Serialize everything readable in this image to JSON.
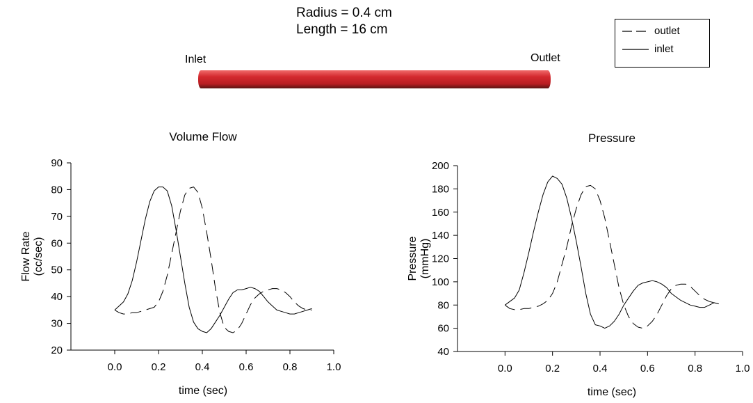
{
  "header": {
    "radius": "Radius = 0.4 cm",
    "length": "Length = 16 cm",
    "inlet_label": "Inlet",
    "outlet_label": "Outlet",
    "vessel_color": "#d42a2f"
  },
  "legend": {
    "items": [
      {
        "label": "outlet",
        "style": "dashed"
      },
      {
        "label": "inlet",
        "style": "solid"
      }
    ]
  },
  "chart_data": [
    {
      "type": "line",
      "title": "Volume Flow",
      "xlabel": "time (sec)",
      "ylabel": [
        "Flow Rate",
        "(cc/sec)"
      ],
      "xlim": [
        -0.2,
        1.0
      ],
      "ylim": [
        20,
        90
      ],
      "xticks": [
        0.0,
        0.2,
        0.4,
        0.6,
        0.8,
        1.0
      ],
      "xtick_labels": [
        "0.0",
        "0.2",
        "0.4",
        "0.6",
        "0.8",
        "1.0"
      ],
      "yticks": [
        20,
        30,
        40,
        50,
        60,
        70,
        80,
        90
      ],
      "ytick_labels": [
        "20",
        "30",
        "40",
        "50",
        "60",
        "70",
        "80",
        "90"
      ],
      "grid": false,
      "series": [
        {
          "name": "inlet",
          "style": "solid",
          "x": [
            0.0,
            0.02,
            0.04,
            0.06,
            0.08,
            0.1,
            0.12,
            0.14,
            0.16,
            0.18,
            0.2,
            0.22,
            0.24,
            0.26,
            0.28,
            0.3,
            0.32,
            0.34,
            0.36,
            0.38,
            0.4,
            0.42,
            0.44,
            0.46,
            0.48,
            0.5,
            0.52,
            0.54,
            0.56,
            0.58,
            0.6,
            0.62,
            0.64,
            0.66,
            0.68,
            0.7,
            0.72,
            0.74,
            0.76,
            0.78,
            0.8,
            0.82,
            0.84,
            0.86,
            0.88,
            0.9
          ],
          "y": [
            35,
            36.5,
            38,
            41,
            46,
            53,
            61,
            69,
            75.5,
            79.5,
            81,
            81,
            79.5,
            74,
            65,
            55,
            45,
            36,
            30.5,
            28,
            27,
            26.5,
            28,
            30.5,
            33,
            36,
            39,
            41.5,
            42.5,
            42.5,
            43,
            43.5,
            43,
            42,
            40,
            38,
            36.5,
            35,
            34.5,
            34,
            33.5,
            33.5,
            34,
            34.5,
            35,
            35.5
          ]
        },
        {
          "name": "outlet",
          "style": "dashed",
          "x": [
            0.0,
            0.02,
            0.04,
            0.06,
            0.08,
            0.1,
            0.12,
            0.14,
            0.16,
            0.18,
            0.2,
            0.22,
            0.24,
            0.26,
            0.28,
            0.3,
            0.32,
            0.34,
            0.36,
            0.38,
            0.4,
            0.42,
            0.44,
            0.46,
            0.48,
            0.5,
            0.52,
            0.54,
            0.56,
            0.58,
            0.6,
            0.62,
            0.64,
            0.66,
            0.68,
            0.7,
            0.72,
            0.74,
            0.76,
            0.78,
            0.8,
            0.82,
            0.84,
            0.86,
            0.88,
            0.9
          ],
          "y": [
            35,
            34,
            33.5,
            33.5,
            34,
            34,
            34.5,
            35,
            35.5,
            36,
            38,
            42,
            48,
            56,
            64,
            72,
            78,
            80.5,
            81,
            79,
            73,
            64,
            54,
            43,
            34,
            28.5,
            27,
            26.5,
            27.5,
            30,
            33.5,
            37,
            39.5,
            41,
            42,
            42.5,
            43,
            43,
            42.5,
            41.5,
            40,
            38,
            36.5,
            35.5,
            35,
            35
          ]
        }
      ]
    },
    {
      "type": "line",
      "title": "Pressure",
      "xlabel": "time (sec)",
      "ylabel": [
        "Pressure",
        "(mmHg)"
      ],
      "xlim": [
        -0.2,
        1.0
      ],
      "ylim": [
        40,
        200
      ],
      "xticks": [
        0.0,
        0.2,
        0.4,
        0.6,
        0.8,
        1.0
      ],
      "xtick_labels": [
        "0.0",
        "0.2",
        "0.4",
        "0.6",
        "0.8",
        "1.0"
      ],
      "yticks": [
        40,
        60,
        80,
        100,
        120,
        140,
        160,
        180,
        200
      ],
      "ytick_labels": [
        "40",
        "60",
        "80",
        "100",
        "120",
        "140",
        "160",
        "180",
        "200"
      ],
      "grid": false,
      "series": [
        {
          "name": "inlet",
          "style": "solid",
          "x": [
            0.0,
            0.02,
            0.04,
            0.06,
            0.08,
            0.1,
            0.12,
            0.14,
            0.16,
            0.18,
            0.2,
            0.22,
            0.24,
            0.26,
            0.28,
            0.3,
            0.32,
            0.34,
            0.36,
            0.38,
            0.4,
            0.42,
            0.44,
            0.46,
            0.48,
            0.5,
            0.52,
            0.54,
            0.56,
            0.58,
            0.6,
            0.62,
            0.64,
            0.66,
            0.68,
            0.7,
            0.72,
            0.74,
            0.76,
            0.78,
            0.8,
            0.82,
            0.84,
            0.86,
            0.88,
            0.9
          ],
          "y": [
            80,
            83,
            86,
            93,
            108,
            125,
            143,
            160,
            175,
            186,
            191,
            189,
            184,
            172,
            155,
            135,
            113,
            90,
            72,
            63,
            62,
            60,
            62,
            66,
            72,
            80,
            86,
            92,
            97,
            99,
            100,
            101,
            100,
            98,
            95,
            90,
            87,
            84,
            82,
            80,
            79,
            78,
            78,
            80,
            82,
            81
          ]
        },
        {
          "name": "outlet",
          "style": "dashed",
          "x": [
            0.0,
            0.02,
            0.04,
            0.06,
            0.08,
            0.1,
            0.12,
            0.14,
            0.16,
            0.18,
            0.2,
            0.22,
            0.24,
            0.26,
            0.28,
            0.3,
            0.32,
            0.34,
            0.36,
            0.38,
            0.4,
            0.42,
            0.44,
            0.46,
            0.48,
            0.5,
            0.52,
            0.54,
            0.56,
            0.58,
            0.6,
            0.62,
            0.64,
            0.66,
            0.68,
            0.7,
            0.72,
            0.74,
            0.76,
            0.78,
            0.8,
            0.82,
            0.84,
            0.86,
            0.88,
            0.9
          ],
          "y": [
            80,
            77,
            76,
            76,
            77,
            77,
            78,
            79,
            81,
            84,
            90,
            100,
            115,
            130,
            148,
            163,
            175,
            182,
            183,
            180,
            170,
            155,
            135,
            115,
            95,
            80,
            70,
            64,
            61,
            60,
            62,
            66,
            72,
            80,
            88,
            94,
            97,
            98,
            98,
            96,
            92,
            88,
            85,
            83,
            82,
            81
          ]
        }
      ]
    }
  ]
}
